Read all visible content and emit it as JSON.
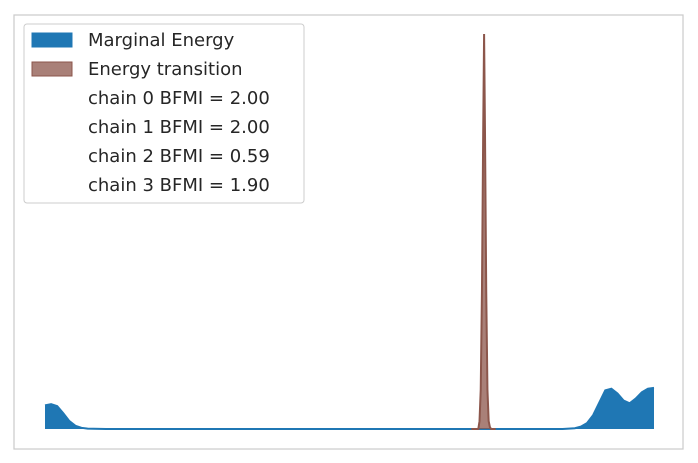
{
  "chart_data": {
    "type": "area",
    "title": "",
    "xlabel": "",
    "ylabel": "",
    "x_ticks_shown": false,
    "y_ticks_shown": false,
    "grid": false,
    "legend_position": "top-left",
    "x_range": [
      0,
      1
    ],
    "y_range": [
      0,
      1
    ],
    "series": [
      {
        "name": "Marginal Energy",
        "color": "#1f77b4",
        "fill_opacity": 1.0,
        "x": [
          0.0,
          0.01,
          0.02,
          0.03,
          0.04,
          0.05,
          0.06,
          0.07,
          0.1,
          0.2,
          0.5,
          0.85,
          0.87,
          0.88,
          0.89,
          0.9,
          0.92,
          0.93,
          0.94,
          0.95,
          0.96,
          0.97,
          0.98,
          0.99,
          1.0
        ],
        "y": [
          0.06,
          0.063,
          0.058,
          0.04,
          0.02,
          0.008,
          0.003,
          0.001,
          0.0,
          0.0,
          0.0,
          0.0,
          0.002,
          0.006,
          0.015,
          0.035,
          0.098,
          0.102,
          0.09,
          0.072,
          0.065,
          0.077,
          0.093,
          0.102,
          0.104
        ]
      },
      {
        "name": "Energy transition",
        "color": "#8c564b",
        "fill_opacity": 0.75,
        "x": [
          0.7,
          0.7115,
          0.7135,
          0.7155,
          0.7175,
          0.7195,
          0.721,
          0.7225,
          0.7245,
          0.7265,
          0.7285,
          0.7305,
          0.7325,
          0.74
        ],
        "y": [
          0.0,
          0.0,
          0.02,
          0.1,
          0.35,
          0.75,
          1.0,
          0.75,
          0.35,
          0.1,
          0.02,
          0.005,
          0.0,
          0.0
        ]
      }
    ],
    "legend": {
      "entries": [
        "Marginal Energy",
        "Energy transition",
        "chain  0 BFMI = 2.00",
        "chain  1 BFMI = 2.00",
        "chain  2 BFMI = 0.59",
        "chain  3 BFMI = 1.90"
      ]
    }
  },
  "colors": {
    "frame": "#cccccc",
    "legend_border": "#cccccc",
    "text": "#262626"
  }
}
